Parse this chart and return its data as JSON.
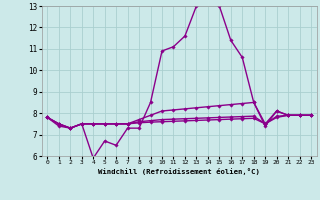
{
  "title": "",
  "xlabel": "Windchill (Refroidissement éolien,°C)",
  "background_color": "#cce9e9",
  "line_color": "#8b008b",
  "grid_color": "#aacfcf",
  "xlim": [
    -0.5,
    23.5
  ],
  "ylim": [
    6,
    13
  ],
  "xticks": [
    0,
    1,
    2,
    3,
    4,
    5,
    6,
    7,
    8,
    9,
    10,
    11,
    12,
    13,
    14,
    15,
    16,
    17,
    18,
    19,
    20,
    21,
    22,
    23
  ],
  "yticks": [
    6,
    7,
    8,
    9,
    10,
    11,
    12,
    13
  ],
  "series": [
    [
      7.8,
      7.4,
      7.3,
      7.5,
      5.9,
      6.7,
      6.5,
      7.3,
      7.3,
      8.5,
      10.9,
      11.1,
      11.6,
      13.0,
      13.2,
      13.0,
      11.4,
      10.6,
      8.5,
      7.4,
      8.1,
      7.9,
      7.9,
      7.9
    ],
    [
      7.8,
      7.5,
      7.3,
      7.5,
      7.5,
      7.5,
      7.5,
      7.5,
      7.7,
      7.9,
      8.1,
      8.15,
      8.2,
      8.25,
      8.3,
      8.35,
      8.4,
      8.45,
      8.5,
      7.5,
      8.1,
      7.9,
      7.9,
      7.9
    ],
    [
      7.8,
      7.5,
      7.3,
      7.5,
      7.5,
      7.5,
      7.5,
      7.5,
      7.6,
      7.65,
      7.7,
      7.72,
      7.74,
      7.76,
      7.78,
      7.8,
      7.82,
      7.84,
      7.86,
      7.5,
      7.85,
      7.9,
      7.9,
      7.9
    ],
    [
      7.8,
      7.5,
      7.3,
      7.5,
      7.5,
      7.5,
      7.5,
      7.5,
      7.55,
      7.58,
      7.6,
      7.62,
      7.64,
      7.66,
      7.68,
      7.7,
      7.72,
      7.74,
      7.76,
      7.5,
      7.8,
      7.9,
      7.9,
      7.9
    ]
  ]
}
